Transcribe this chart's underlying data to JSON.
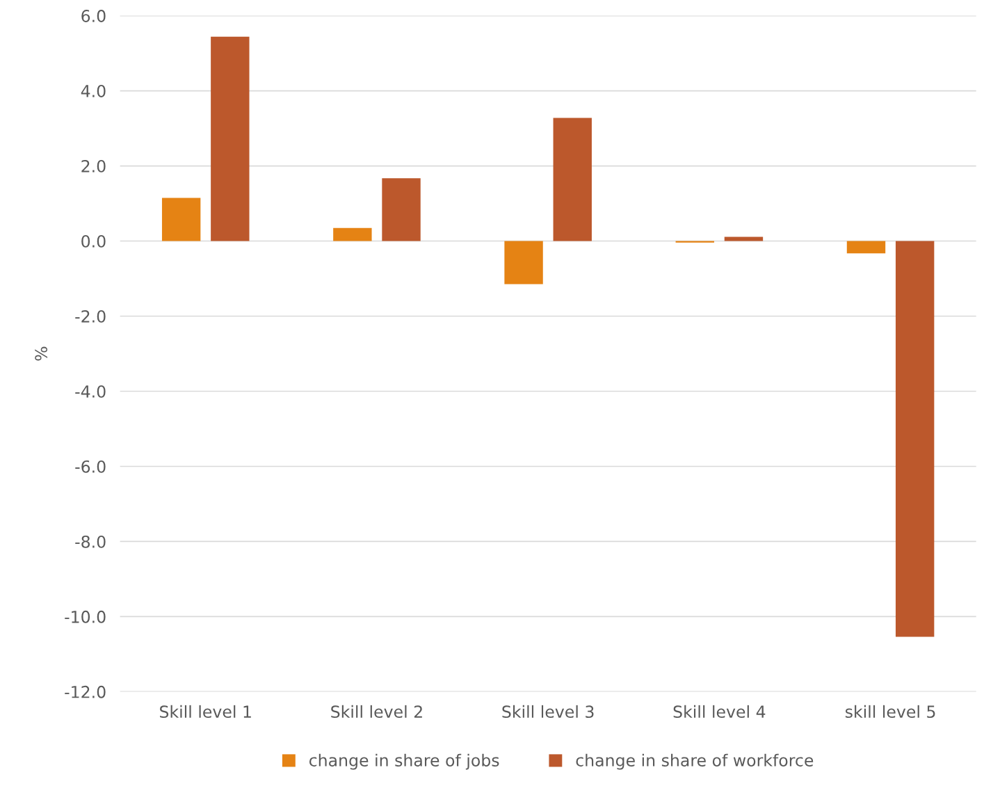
{
  "chart_data": {
    "type": "bar",
    "ylabel": "%",
    "categories": [
      "Skill level 1",
      "Skill level 2",
      "Skill level 3",
      "Skill level 4",
      "skill level 5"
    ],
    "series": [
      {
        "name": "change in share of jobs",
        "color": "#e58314",
        "values": [
          1.15,
          0.35,
          -1.15,
          -0.04,
          -0.33
        ]
      },
      {
        "name": "change in share of workforce",
        "color": "#bc582c",
        "values": [
          5.44,
          1.67,
          3.28,
          0.11,
          -10.54
        ]
      }
    ],
    "ylim": [
      -12.0,
      6.0
    ],
    "yticks": [
      {
        "value": -12,
        "label": "-12.0"
      },
      {
        "value": -10,
        "label": "-10.0"
      },
      {
        "value": -8,
        "label": "-8.0"
      },
      {
        "value": -6,
        "label": "-6.0"
      },
      {
        "value": -4,
        "label": "-4.0"
      },
      {
        "value": -2,
        "label": "-2.0"
      },
      {
        "value": 0,
        "label": "0.0"
      },
      {
        "value": 2,
        "label": "2.0"
      },
      {
        "value": 4,
        "label": "4.0"
      },
      {
        "value": 6,
        "label": "6.0"
      }
    ],
    "grid": "y",
    "legend": "bottom"
  }
}
